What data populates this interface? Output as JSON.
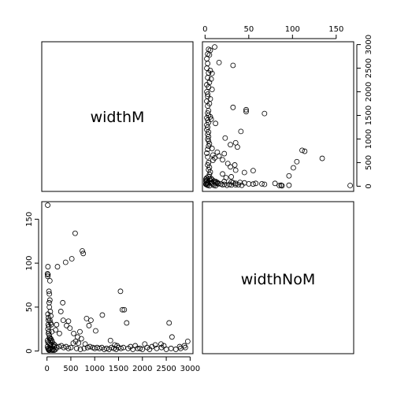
{
  "chart_data": {
    "type": "scatter",
    "title": "",
    "variables": [
      "widthM",
      "widthNoM"
    ],
    "diagonal_labels": {
      "top_left": "widthM",
      "bottom_right": "widthNoM"
    },
    "axes": {
      "widthM": {
        "range": [
          -3,
          170
        ],
        "ticks": [
          0,
          50,
          100,
          150
        ],
        "tick_labels": [
          "0",
          "50",
          "100",
          "150"
        ]
      },
      "widthNoM": {
        "range": [
          -110,
          3060
        ],
        "ticks": [
          0,
          500,
          1000,
          1500,
          2000,
          2500,
          3000
        ],
        "tick_labels_x": [
          "0",
          "500",
          "1000",
          "1500",
          "2000",
          "2500",
          "3000"
        ],
        "tick_labels_y": [
          "0",
          "500",
          "1000",
          "1500",
          "2000",
          "2500",
          "3000"
        ]
      }
    },
    "grid": false,
    "marker": "open-circle",
    "series": [
      {
        "x_var": "widthNoM",
        "y_var": "widthM",
        "points": [
          [
            15,
            166
          ],
          [
            20,
            96
          ],
          [
            10,
            88
          ],
          [
            20,
            87
          ],
          [
            15,
            85
          ],
          [
            60,
            80
          ],
          [
            40,
            68
          ],
          [
            50,
            65
          ],
          [
            60,
            58
          ],
          [
            45,
            55
          ],
          [
            50,
            50
          ],
          [
            70,
            45
          ],
          [
            80,
            40
          ],
          [
            30,
            38
          ],
          [
            60,
            35
          ],
          [
            75,
            32
          ],
          [
            90,
            30
          ],
          [
            40,
            28
          ],
          [
            20,
            25
          ],
          [
            100,
            22
          ],
          [
            30,
            20
          ],
          [
            50,
            18
          ],
          [
            60,
            15
          ],
          [
            80,
            14
          ],
          [
            100,
            12
          ],
          [
            20,
            10
          ],
          [
            40,
            9
          ],
          [
            60,
            8
          ],
          [
            80,
            7
          ],
          [
            120,
            6
          ],
          [
            150,
            5
          ],
          [
            200,
            4
          ],
          [
            250,
            5
          ],
          [
            300,
            6
          ],
          [
            350,
            4
          ],
          [
            400,
            5
          ],
          [
            450,
            3
          ],
          [
            500,
            4
          ],
          [
            10,
            5
          ],
          [
            20,
            3
          ],
          [
            30,
            2
          ],
          [
            40,
            1
          ],
          [
            50,
            1
          ],
          [
            60,
            2
          ],
          [
            70,
            3
          ],
          [
            90,
            2
          ],
          [
            110,
            1
          ],
          [
            130,
            2
          ],
          [
            150,
            1
          ],
          [
            180,
            2
          ],
          [
            20,
            42
          ],
          [
            30,
            35
          ],
          [
            40,
            22
          ],
          [
            50,
            15
          ],
          [
            70,
            12
          ],
          [
            110,
            10
          ],
          [
            140,
            8
          ],
          [
            160,
            7
          ],
          [
            10,
            12
          ],
          [
            25,
            30
          ],
          [
            590,
            134
          ],
          [
            740,
            114
          ],
          [
            760,
            111
          ],
          [
            520,
            105
          ],
          [
            390,
            101
          ],
          [
            220,
            96
          ],
          [
            330,
            55
          ],
          [
            290,
            45
          ],
          [
            340,
            35
          ],
          [
            450,
            34
          ],
          [
            480,
            26
          ],
          [
            410,
            29
          ],
          [
            180,
            24
          ],
          [
            260,
            20
          ],
          [
            200,
            30
          ],
          [
            560,
            20
          ],
          [
            640,
            16
          ],
          [
            720,
            14
          ],
          [
            800,
            8
          ],
          [
            850,
            4
          ],
          [
            900,
            5
          ],
          [
            960,
            4
          ],
          [
            1000,
            3
          ],
          [
            1050,
            4
          ],
          [
            1100,
            3
          ],
          [
            1150,
            4
          ],
          [
            1200,
            2
          ],
          [
            1250,
            3
          ],
          [
            1300,
            2
          ],
          [
            1350,
            4
          ],
          [
            1400,
            3
          ],
          [
            1450,
            2
          ],
          [
            1500,
            4
          ],
          [
            1550,
            3
          ],
          [
            1600,
            4
          ],
          [
            1700,
            3
          ],
          [
            1800,
            2
          ],
          [
            1900,
            3
          ],
          [
            2000,
            2
          ],
          [
            2100,
            4
          ],
          [
            2200,
            5
          ],
          [
            2300,
            3
          ],
          [
            2400,
            4
          ],
          [
            2500,
            2
          ],
          [
            2600,
            3
          ],
          [
            2700,
            2
          ],
          [
            2800,
            3
          ],
          [
            2900,
            4
          ],
          [
            2950,
            11
          ],
          [
            2880,
            6
          ],
          [
            2560,
            32
          ],
          [
            2390,
            8
          ],
          [
            2270,
            7
          ],
          [
            2050,
            8
          ],
          [
            1670,
            32
          ],
          [
            1620,
            47
          ],
          [
            1580,
            47
          ],
          [
            1540,
            68
          ],
          [
            1330,
            12
          ],
          [
            1160,
            41
          ],
          [
            1020,
            23
          ],
          [
            920,
            35
          ],
          [
            880,
            29
          ],
          [
            830,
            37
          ],
          [
            690,
            22
          ],
          [
            660,
            9
          ],
          [
            600,
            11
          ],
          [
            550,
            9
          ],
          [
            1420,
            7
          ],
          [
            1470,
            6
          ],
          [
            1750,
            5
          ],
          [
            1850,
            6
          ],
          [
            1950,
            3
          ],
          [
            2150,
            2
          ],
          [
            2450,
            6
          ],
          [
            2620,
            16
          ],
          [
            2780,
            5
          ],
          [
            620,
            3
          ],
          [
            700,
            2
          ],
          [
            780,
            3
          ]
        ]
      }
    ]
  }
}
